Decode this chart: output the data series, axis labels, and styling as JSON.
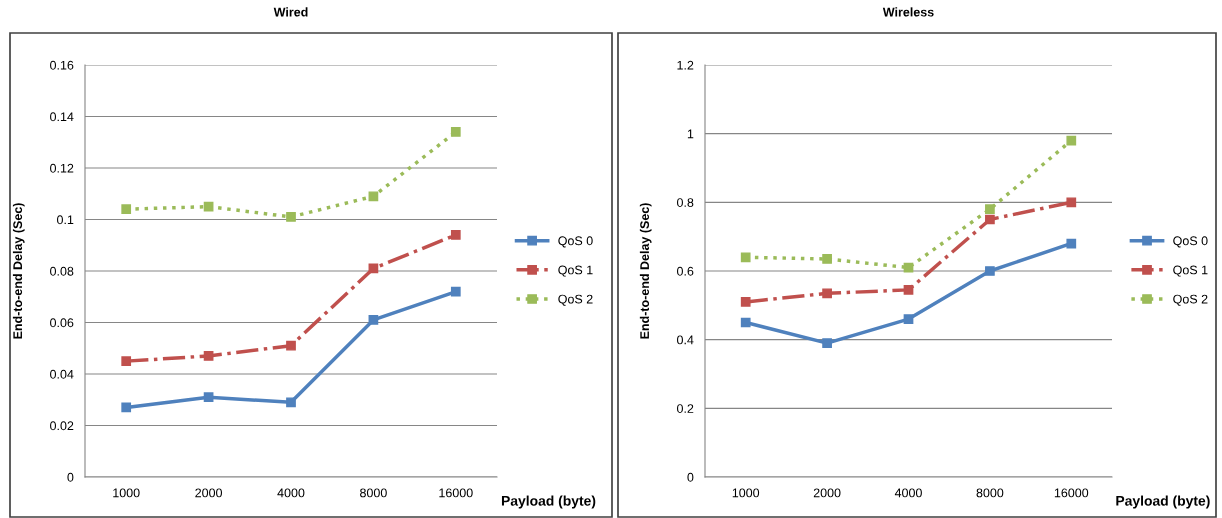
{
  "chart_data": [
    {
      "type": "line",
      "title": "Wired",
      "xlabel": "Payload (byte)",
      "ylabel": "End-to-end Delay (Sec)",
      "categories": [
        "1000",
        "2000",
        "4000",
        "8000",
        "16000"
      ],
      "ylim": [
        0,
        0.16
      ],
      "yticks": [
        0,
        0.02,
        0.04,
        0.06,
        0.08,
        0.1,
        0.12,
        0.14,
        0.16
      ],
      "grid": "y",
      "legend": "right",
      "marker": "square",
      "series": [
        {
          "name": "QoS 0",
          "color": "#4f81bd",
          "line_style": "solid",
          "values": [
            0.027,
            0.031,
            0.029,
            0.061,
            0.072
          ]
        },
        {
          "name": "QoS 1",
          "color": "#c0504d",
          "line_style": "dashed",
          "values": [
            0.045,
            0.047,
            0.051,
            0.081,
            0.094
          ]
        },
        {
          "name": "QoS 2",
          "color": "#9bbb59",
          "line_style": "dotted",
          "values": [
            0.104,
            0.105,
            0.101,
            0.109,
            0.134
          ]
        }
      ]
    },
    {
      "type": "line",
      "title": "Wireless",
      "xlabel": "Payload (byte)",
      "ylabel": "End-to-end Delay (Sec)",
      "categories": [
        "1000",
        "2000",
        "4000",
        "8000",
        "16000"
      ],
      "ylim": [
        0,
        1.2
      ],
      "yticks": [
        0,
        0.2,
        0.4,
        0.6,
        0.8,
        1,
        1.2
      ],
      "grid": "y",
      "legend": "right",
      "marker": "square",
      "series": [
        {
          "name": "QoS 0",
          "color": "#4f81bd",
          "line_style": "solid",
          "values": [
            0.45,
            0.39,
            0.46,
            0.6,
            0.68
          ]
        },
        {
          "name": "QoS 1",
          "color": "#c0504d",
          "line_style": "dashed",
          "values": [
            0.51,
            0.535,
            0.545,
            0.75,
            0.8
          ]
        },
        {
          "name": "QoS 2",
          "color": "#9bbb59",
          "line_style": "dotted",
          "values": [
            0.64,
            0.635,
            0.61,
            0.78,
            0.98
          ]
        }
      ]
    }
  ]
}
